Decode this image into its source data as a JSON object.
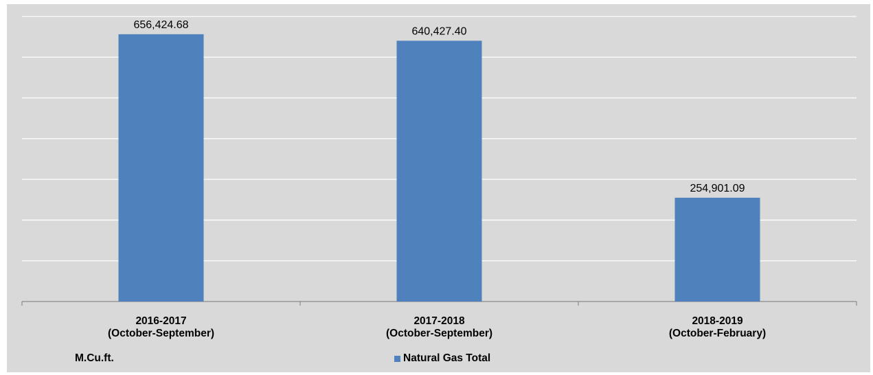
{
  "chart_data": {
    "type": "bar",
    "categories": [
      [
        "2016-2017",
        "(October-September)"
      ],
      [
        "2017-2018",
        "(October-September)"
      ],
      [
        "2018-2019",
        "(October-February)"
      ]
    ],
    "series": [
      {
        "name": "Natural Gas Total",
        "values": [
          656424.68,
          640427.4,
          254901.09
        ]
      }
    ],
    "data_labels": [
      "656,424.68",
      "640,427.40",
      "254,901.09"
    ],
    "unit_label": "M.Cu.ft.",
    "ylim": [
      0,
      700000
    ],
    "grid": true,
    "legend_position": "bottom-center",
    "colors": {
      "bar": "#4f81bd",
      "background": "#d9d9d9",
      "grid": "#ffffff"
    }
  }
}
